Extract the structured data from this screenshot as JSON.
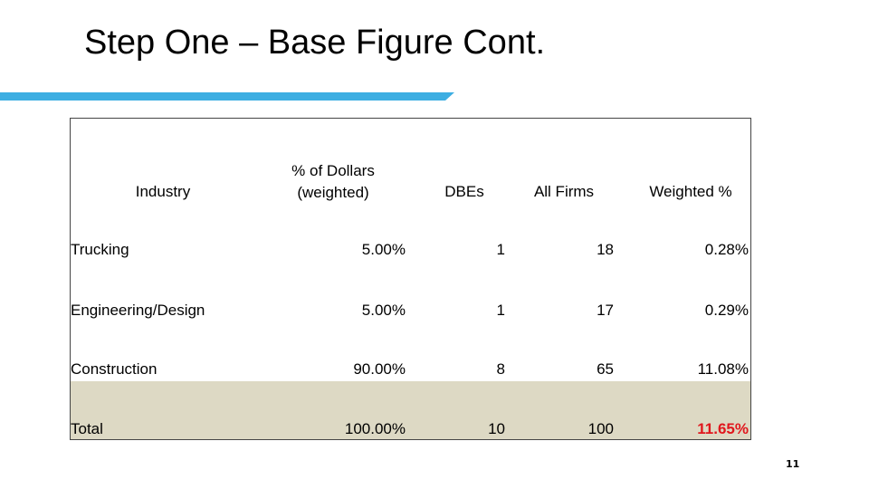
{
  "slide": {
    "title": "Step One – Base Figure Cont.",
    "page_number": "11",
    "accent_color": "#3daee2"
  },
  "table": {
    "headers": {
      "industry": "Industry",
      "pct_line1": "% of Dollars",
      "pct_line2": "(weighted)",
      "dbes": "DBEs",
      "all_firms": "All Firms",
      "weighted": "Weighted %"
    },
    "rows": [
      {
        "industry": "Trucking",
        "pct": "5.00%",
        "dbes": "1",
        "all_firms": "18",
        "weighted": "0.28%"
      },
      {
        "industry": "Engineering/Design",
        "pct": "5.00%",
        "dbes": "1",
        "all_firms": "17",
        "weighted": "0.29%"
      },
      {
        "industry": "Construction",
        "pct": "90.00%",
        "dbes": "8",
        "all_firms": "65",
        "weighted": "11.08%"
      }
    ],
    "total": {
      "industry": "Total",
      "pct": "100.00%",
      "dbes": "10",
      "all_firms": "100",
      "weighted": "11.65%"
    },
    "total_band_color": "#ddd9c4",
    "highlight_color": "#e0171d"
  }
}
